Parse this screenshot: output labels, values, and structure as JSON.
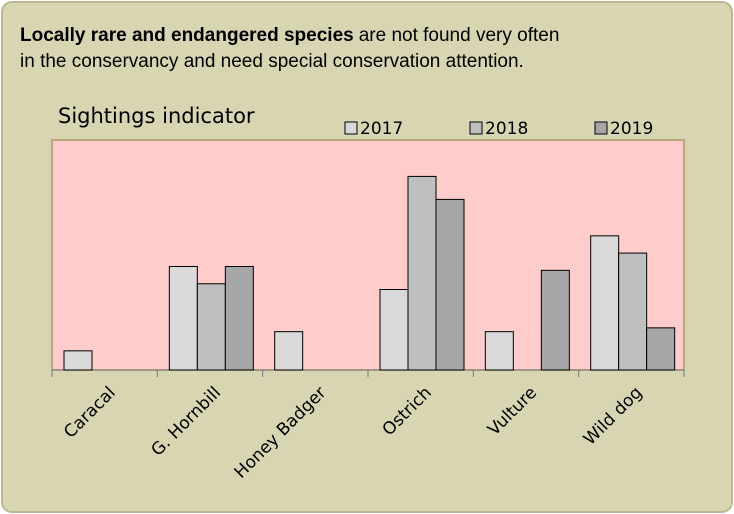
{
  "intro": {
    "bold": "Locally rare and endangered species",
    "line1": "are not found very often",
    "line2": "in the conservancy and need special conservation attention."
  },
  "chart_data": {
    "type": "bar",
    "title": "Sightings indicator",
    "categories": [
      "Caracal",
      "G. Hornbill",
      "Honey Badger",
      "Ostrich",
      "Vulture",
      "Wild dog"
    ],
    "series": [
      {
        "name": "2017",
        "color": "#d9d9d9",
        "values": [
          1.0,
          5.4,
          2.0,
          4.2,
          2.0,
          7.0
        ]
      },
      {
        "name": "2018",
        "color": "#bfbfbf",
        "values": [
          null,
          4.5,
          null,
          10.1,
          null,
          6.1
        ]
      },
      {
        "name": "2019",
        "color": "#a6a6a6",
        "values": [
          null,
          5.4,
          null,
          8.9,
          5.2,
          2.2
        ]
      }
    ],
    "ylim": [
      0,
      12
    ],
    "legend": "top-right",
    "plot_background": "#ffcccc"
  }
}
